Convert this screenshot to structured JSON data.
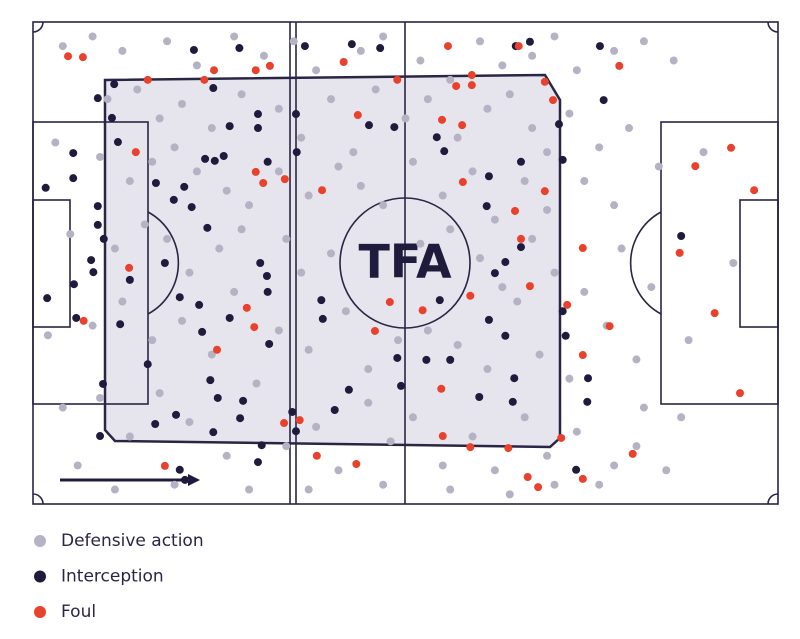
{
  "chart_data": {
    "type": "scatter",
    "watermark": "TFA",
    "xlim": [
      0,
      100
    ],
    "ylim": [
      100,
      0
    ],
    "series": [
      {
        "name": "Defensive action",
        "color": "#b5b3c3",
        "x": [
          4,
          8,
          12,
          18,
          22,
          27,
          31,
          35,
          38,
          44,
          47,
          52,
          56,
          60,
          63,
          67,
          70,
          73,
          78,
          82,
          86,
          10,
          14,
          17,
          20,
          24,
          28,
          33,
          36,
          40,
          43,
          46,
          50,
          53,
          57,
          61,
          64,
          67,
          69,
          72,
          76,
          80,
          3,
          9,
          13,
          16,
          19,
          22,
          26,
          29,
          33,
          37,
          41,
          44,
          47,
          51,
          55,
          59,
          62,
          66,
          69,
          74,
          78,
          84,
          90,
          5,
          11,
          15,
          18,
          21,
          25,
          28,
          34,
          36,
          40,
          52,
          56,
          60,
          63,
          67,
          70,
          74,
          79,
          83,
          94,
          2,
          8,
          12,
          16,
          20,
          24,
          27,
          33,
          37,
          42,
          45,
          49,
          53,
          57,
          61,
          65,
          68,
          72,
          77,
          81,
          88,
          4,
          9,
          13,
          17,
          21,
          26,
          30,
          34,
          38,
          41,
          45,
          48,
          51,
          55,
          59,
          62,
          66,
          69,
          73,
          76,
          81,
          85,
          6,
          11,
          19,
          29,
          37,
          47,
          56,
          64,
          70,
          78,
          82,
          87
        ],
        "y": [
          5,
          3,
          6,
          4,
          9,
          3,
          7,
          4,
          10,
          6,
          3,
          8,
          12,
          4,
          9,
          7,
          3,
          10,
          6,
          4,
          8,
          16,
          14,
          20,
          17,
          22,
          15,
          18,
          24,
          16,
          27,
          14,
          20,
          16,
          24,
          18,
          15,
          22,
          27,
          19,
          26,
          22,
          25,
          28,
          33,
          29,
          26,
          31,
          35,
          38,
          31,
          36,
          30,
          34,
          38,
          29,
          36,
          31,
          41,
          33,
          39,
          33,
          38,
          30,
          27,
          44,
          47,
          42,
          45,
          52,
          47,
          43,
          45,
          52,
          48,
          46,
          43,
          49,
          55,
          45,
          52,
          56,
          47,
          55,
          50,
          65,
          63,
          58,
          66,
          62,
          69,
          56,
          64,
          68,
          60,
          72,
          66,
          64,
          67,
          72,
          58,
          69,
          74,
          63,
          70,
          66,
          80,
          78,
          86,
          77,
          83,
          90,
          75,
          88,
          84,
          93,
          79,
          87,
          82,
          92,
          86,
          93,
          82,
          90,
          85,
          96,
          88,
          93,
          92,
          97,
          96,
          97,
          97,
          96,
          97,
          98,
          96,
          92,
          80,
          82
        ]
      },
      {
        "name": "Interception",
        "color": "#1f1b3d",
        "x": [
          10.9,
          21.6,
          24.2,
          27.7,
          36.5,
          42.8,
          46.6,
          64.8,
          66.7,
          76.1,
          76.6,
          35.3,
          30.2,
          10.6,
          8.7,
          11.4,
          5.4,
          1.7,
          5.4,
          8.7,
          8.7,
          9.5,
          7.8,
          8.1,
          5.5,
          13.0,
          1.9,
          5.8,
          11.7,
          15.4,
          9.4,
          9.0,
          19.7,
          20.4,
          16.4,
          19.2,
          23.8,
          24.8,
          28.2,
          24.2,
          27.8,
          30.7,
          30.2,
          34.8,
          35.3,
          40.5,
          42.4,
          49.4,
          52.8,
          48.9,
          56.0,
          59.9,
          64.4,
          64.6,
          74.5,
          72.9,
          74.4,
          71.5,
          71.1,
          63.4,
          61.2,
          54.6,
          62.0,
          63.4,
          65.5,
          70.6,
          71.1,
          65.5,
          60.9,
          61.2,
          55.2,
          54.2,
          48.5,
          45.1,
          35.4,
          31.5,
          30.2,
          26.4,
          25.6,
          24.4,
          23.1,
          23.4,
          21.3,
          18.9,
          20.3,
          16.5,
          22.3,
          19.7,
          31.5,
          30.5,
          31.4,
          26.4,
          38.7,
          38.9,
          31.7,
          22.7,
          17.7,
          87.0
        ],
        "y": [
          12.9,
          5.8,
          13.7,
          5.4,
          5.0,
          4.6,
          5.4,
          5.0,
          4.1,
          5.0,
          16.2,
          19.1,
          19.1,
          19.9,
          15.8,
          24.9,
          27.2,
          34.4,
          32.4,
          38.2,
          42.1,
          45.0,
          49.4,
          51.9,
          54.4,
          53.5,
          57.3,
          61.4,
          62.7,
          71.0,
          75.1,
          85.9,
          92.9,
          95.0,
          83.4,
          81.5,
          74.3,
          78.0,
          78.6,
          85.1,
          82.2,
          87.8,
          91.3,
          80.9,
          84.9,
          80.5,
          76.3,
          75.5,
          70.1,
          69.7,
          70.1,
          77.8,
          78.8,
          73.9,
          73.9,
          92.9,
          78.8,
          65.1,
          60.0,
          65.1,
          61.8,
          57.7,
          52.1,
          49.8,
          46.7,
          21.2,
          28.6,
          29.0,
          38.2,
          32.0,
          26.8,
          23.9,
          21.8,
          21.4,
          27.0,
          29.0,
          22.0,
          21.6,
          27.8,
          28.8,
          28.4,
          42.7,
          38.4,
          36.9,
          34.2,
          33.4,
          58.7,
          57.1,
          56.0,
          50.0,
          52.7,
          61.4,
          57.7,
          61.6,
          66.8,
          64.3,
          50.0,
          44.4
        ]
      },
      {
        "name": "Foul",
        "color": "#e8412c",
        "x": [
          4.7,
          6.7,
          15.4,
          23.0,
          24.3,
          29.9,
          31.8,
          41.7,
          48.9,
          55.7,
          58.9,
          56.8,
          58.9,
          68.7,
          69.8,
          65.2,
          78.7,
          43.6,
          54.9,
          57.6,
          13.8,
          29.9,
          30.9,
          33.8,
          38.8,
          57.7,
          68.7,
          64.7,
          65.5,
          93.7,
          88.9,
          96.8,
          86.8,
          73.8,
          12.9,
          58.7,
          47.9,
          52.3,
          66.7,
          71.7,
          6.8,
          29.7,
          28.7,
          45.9,
          24.7,
          77.4,
          73.8,
          91.5,
          94.9,
          54.8,
          35.8,
          33.7,
          55.0,
          63.8,
          58.7,
          70.9,
          80.5,
          38.1,
          43.4,
          17.7,
          66.4,
          67.8,
          73.8
        ],
        "y": [
          7.1,
          7.3,
          12.0,
          12.0,
          10.0,
          10.0,
          9.1,
          8.3,
          12.0,
          5.0,
          11.0,
          13.3,
          13.1,
          12.4,
          16.2,
          5.0,
          9.1,
          19.3,
          20.3,
          21.4,
          27.0,
          31.1,
          33.4,
          32.6,
          34.9,
          33.2,
          35.1,
          39.2,
          45.0,
          26.1,
          29.9,
          34.9,
          47.9,
          46.9,
          51.0,
          56.8,
          58.1,
          59.8,
          54.8,
          58.7,
          62.0,
          63.3,
          59.3,
          64.1,
          68.0,
          63.1,
          69.1,
          60.4,
          77.0,
          76.1,
          82.6,
          83.2,
          85.9,
          88.4,
          88.2,
          86.3,
          89.6,
          90.0,
          91.7,
          92.1,
          94.4,
          96.5,
          94.8
        ]
      }
    ]
  }
}
